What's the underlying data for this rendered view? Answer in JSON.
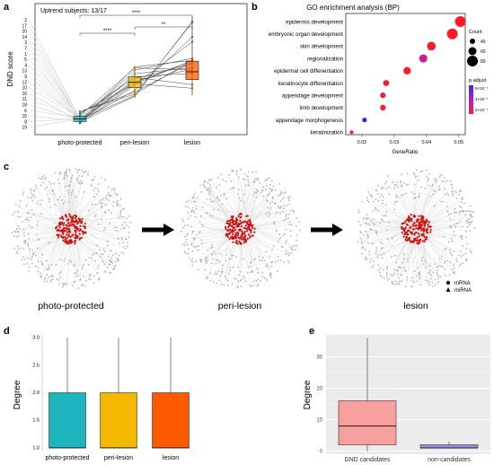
{
  "panel_labels": {
    "a": "a",
    "b": "b",
    "c": "c",
    "d": "d",
    "e": "e"
  },
  "colors": {
    "photo_protected": "#1fb5bf",
    "peri_lesion": "#f5b800",
    "lesion": "#ff5a00",
    "dnd_candidates": "#f8a0a0",
    "non_candidates": "#8f8fe6",
    "mirna_node": "#cc1111",
    "mrna_node": "#b5b5b5",
    "edge": "#dcdcdc"
  },
  "chart_data": [
    {
      "id": "a",
      "type": "box",
      "annotation": "Uptrend subjects: 13/17",
      "ylabel": "DND score",
      "categories": [
        "photo-protected",
        "peri-lesion",
        "lesion"
      ],
      "box_stats": [
        {
          "category": "photo-protected",
          "q1": 0.05,
          "median": 0.06,
          "q3": 0.07,
          "whisker_low": 0.04,
          "whisker_high": 0.09
        },
        {
          "category": "peri-lesion",
          "q1": 0.18,
          "median": 0.2,
          "q3": 0.22,
          "whisker_low": 0.14,
          "whisker_high": 0.26
        },
        {
          "category": "lesion",
          "q1": 0.21,
          "median": 0.24,
          "q3": 0.28,
          "whisker_low": 0.15,
          "whisker_high": 0.45
        }
      ],
      "subjects": [
        "2",
        "17",
        "20",
        "14",
        "3",
        "7",
        "1",
        "5",
        "4",
        "13",
        "9",
        "12",
        "10",
        "16",
        "11",
        "18",
        "6",
        "15",
        "8",
        "19"
      ],
      "significance": [
        {
          "from": "photo-protected",
          "to": "peri-lesion",
          "label": "****"
        },
        {
          "from": "peri-lesion",
          "to": "lesion",
          "label": "**"
        },
        {
          "from": "photo-protected",
          "to": "lesion",
          "label": "****"
        }
      ],
      "ylim": [
        0,
        0.5
      ]
    },
    {
      "id": "b",
      "type": "scatter",
      "title": "GO enrichment analysis (BP)",
      "xlabel": "GeneRatio",
      "xlim": [
        0.015,
        0.052
      ],
      "xticks": [
        "0.02",
        "0.03",
        "0.04",
        "0.05"
      ],
      "terms": [
        {
          "term": "epidermis development",
          "gene_ratio": 0.0505,
          "count": 80,
          "p_adjust": 0
        },
        {
          "term": "embryonic organ development",
          "gene_ratio": 0.048,
          "count": 80,
          "p_adjust": 0
        },
        {
          "term": "skin development",
          "gene_ratio": 0.0415,
          "count": 65,
          "p_adjust": 0
        },
        {
          "term": "regionalization",
          "gene_ratio": 0.039,
          "count": 60,
          "p_adjust": 2e-07
        },
        {
          "term": "epidermal cell differentiation",
          "gene_ratio": 0.034,
          "count": 55,
          "p_adjust": 0
        },
        {
          "term": "keratinocyte differentiation",
          "gene_ratio": 0.0275,
          "count": 45,
          "p_adjust": 0
        },
        {
          "term": "appendage development",
          "gene_ratio": 0.0265,
          "count": 42,
          "p_adjust": 0
        },
        {
          "term": "limb development",
          "gene_ratio": 0.0265,
          "count": 42,
          "p_adjust": 0
        },
        {
          "term": "appendage morphogenesis",
          "gene_ratio": 0.0208,
          "count": 35,
          "p_adjust": 6e-07
        },
        {
          "term": "keratinization",
          "gene_ratio": 0.0168,
          "count": 28,
          "p_adjust": 0
        }
      ],
      "legend_count": {
        "title": "Count",
        "values": [
          "40",
          "60",
          "80"
        ]
      },
      "legend_padjust": {
        "title": "p.adjust",
        "labels": [
          "6×10⁻⁷",
          "4×10⁻⁷",
          "2×10⁻⁷"
        ]
      }
    },
    {
      "id": "c",
      "type": "network",
      "networks": [
        "photo-protected",
        "peri-lesion",
        "lesion"
      ],
      "legend": [
        "mRNA",
        "miRNA"
      ]
    },
    {
      "id": "d",
      "type": "box",
      "ylabel": "Degree",
      "categories": [
        "photo-protected",
        "peri-lesion",
        "lesion"
      ],
      "box_stats": [
        {
          "category": "photo-protected",
          "q1": 1.0,
          "median": 1.0,
          "q3": 2.0,
          "whisker_low": 1.0,
          "whisker_high": 3.0
        },
        {
          "category": "peri-lesion",
          "q1": 1.0,
          "median": 1.0,
          "q3": 2.0,
          "whisker_low": 1.0,
          "whisker_high": 3.0
        },
        {
          "category": "lesion",
          "q1": 1.0,
          "median": 1.0,
          "q3": 2.0,
          "whisker_low": 1.0,
          "whisker_high": 3.0
        }
      ],
      "yticks": [
        "1.0",
        "1.5",
        "2.0",
        "2.5",
        "3.0"
      ],
      "ylim": [
        0.95,
        3.05
      ]
    },
    {
      "id": "e",
      "type": "box",
      "ylabel": "Degree",
      "categories": [
        "DND candidates",
        "non-candidates"
      ],
      "box_stats": [
        {
          "category": "DND candidates",
          "q1": 2,
          "median": 8,
          "q3": 16,
          "whisker_low": 0,
          "whisker_high": 36
        },
        {
          "category": "non-candidates",
          "q1": 1,
          "median": 1,
          "q3": 2,
          "whisker_low": 1,
          "whisker_high": 3
        }
      ],
      "yticks": [
        "0",
        "10",
        "20",
        "30"
      ],
      "ylim": [
        -1,
        37
      ]
    }
  ]
}
